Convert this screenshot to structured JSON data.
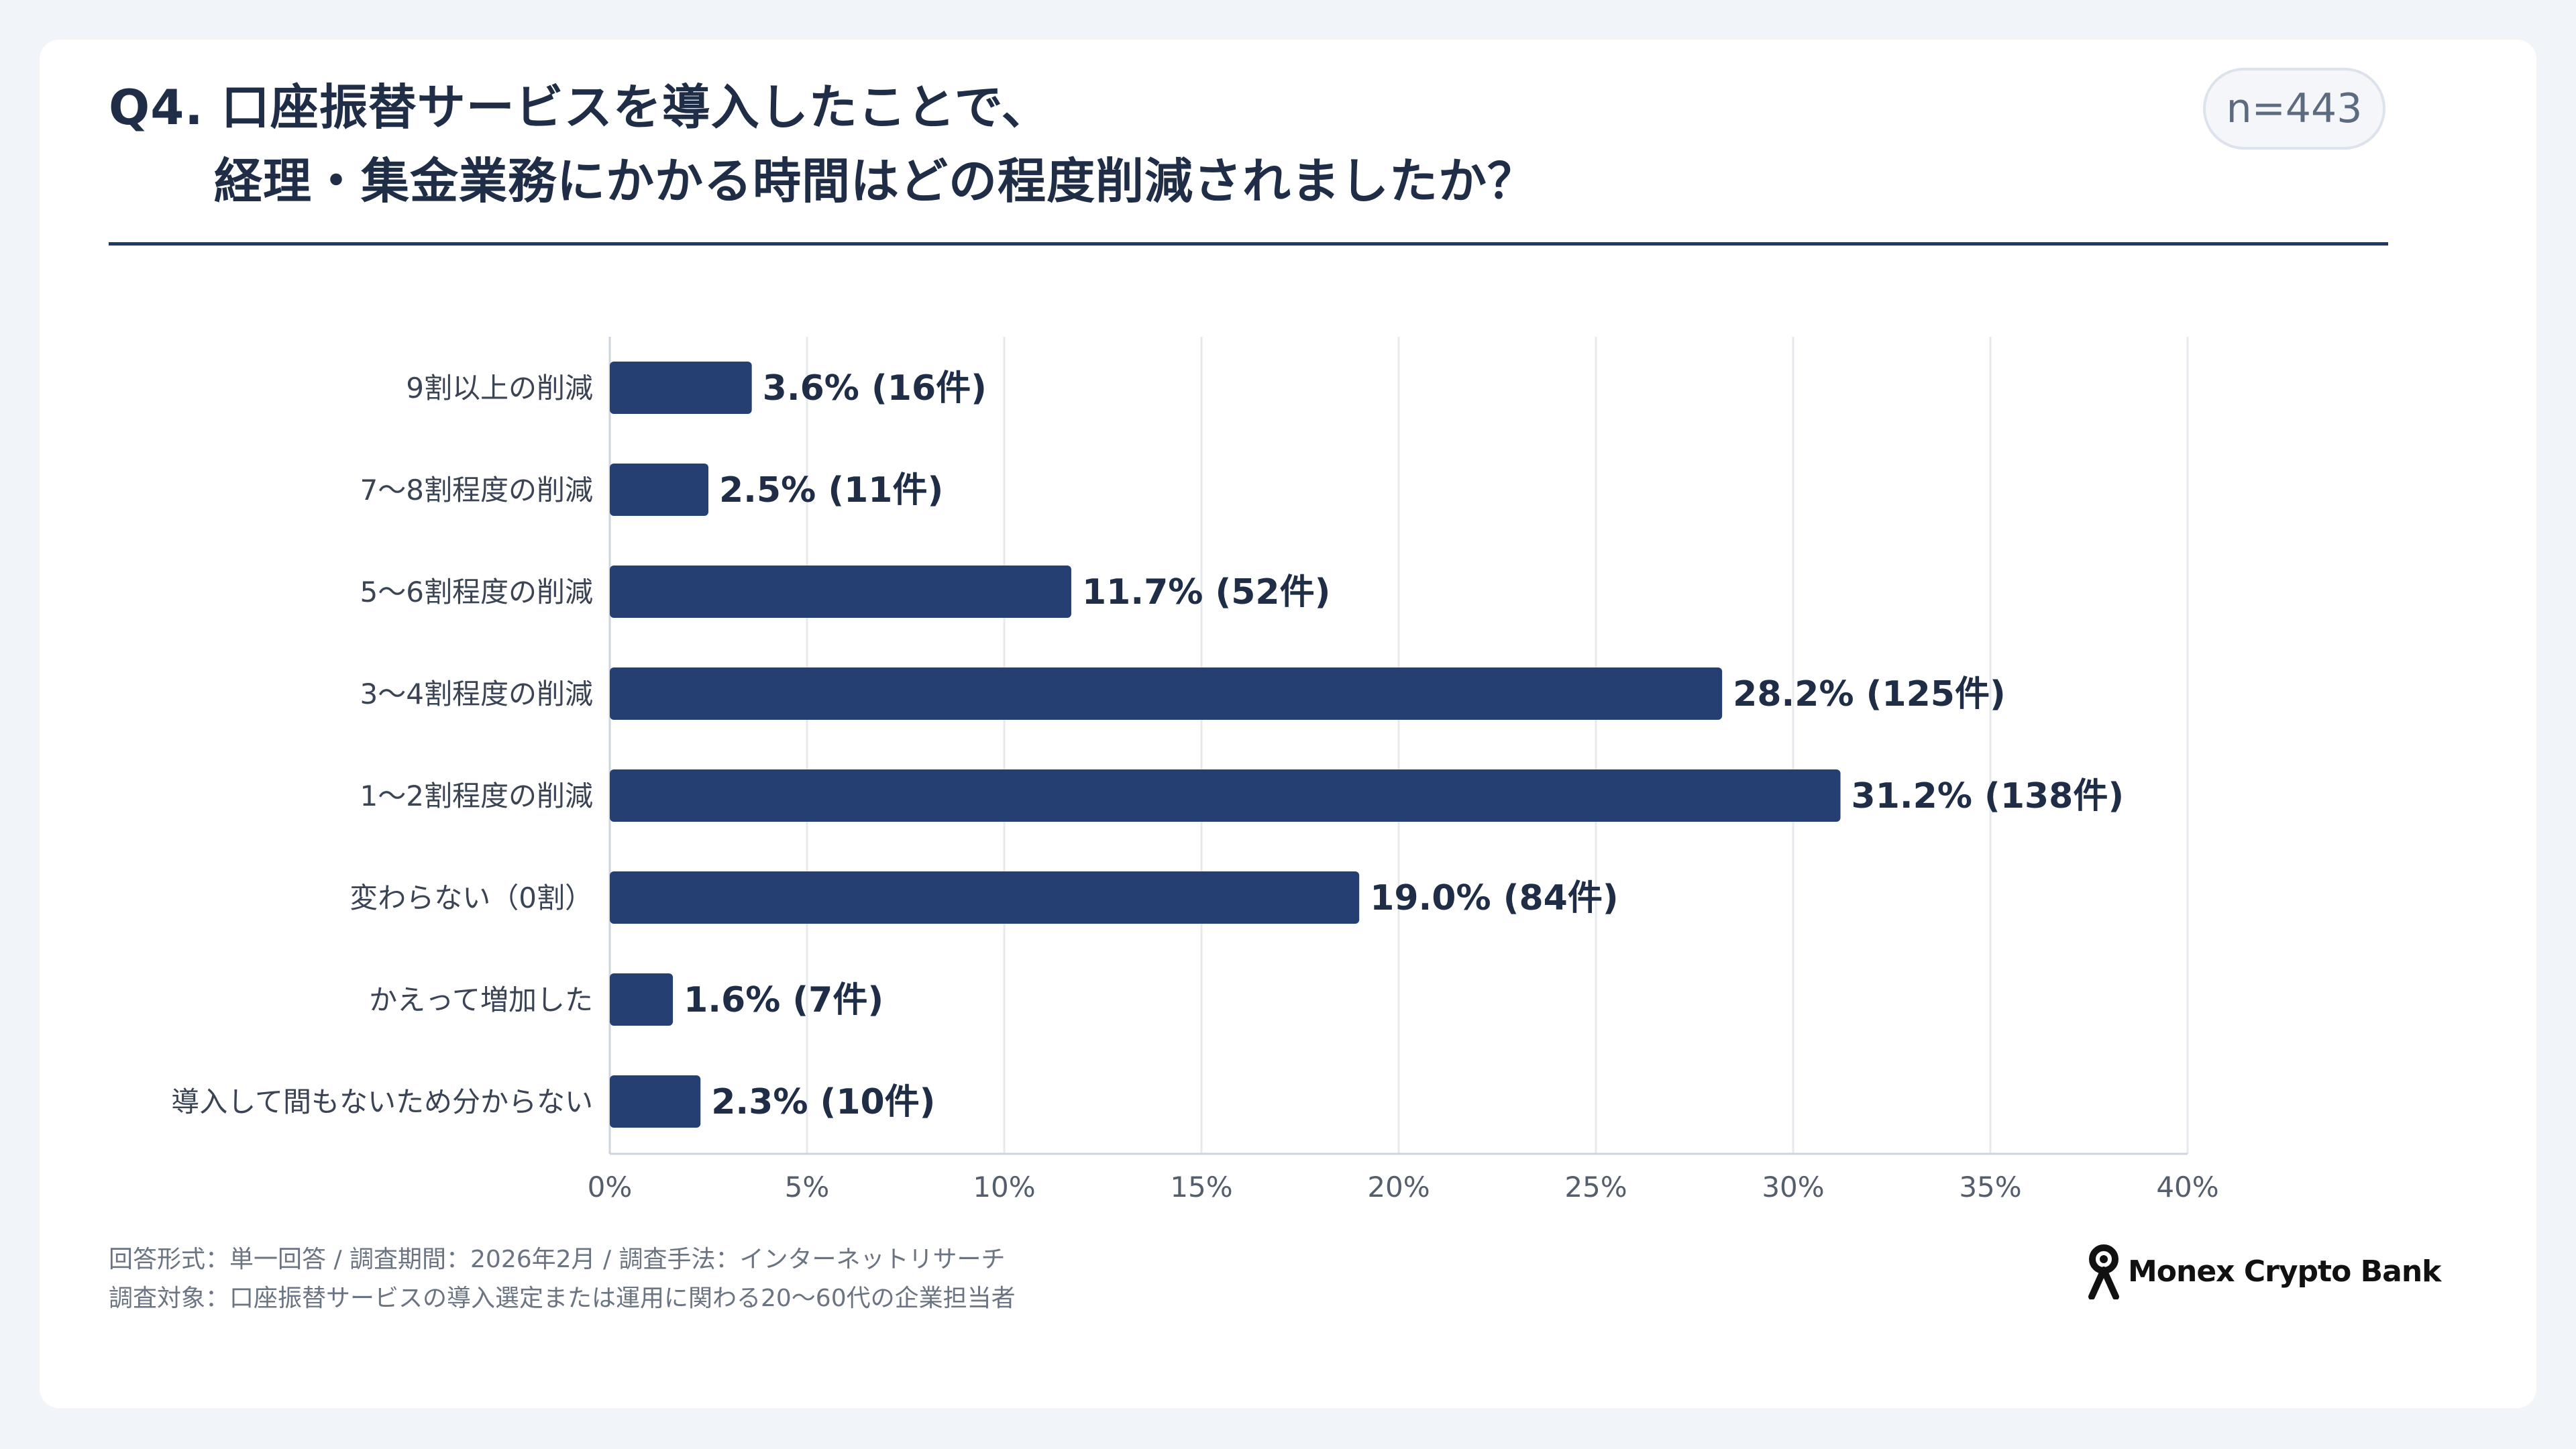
{
  "header": {
    "title_line1": "Q4. 口座振替サービスを導入したことで、",
    "title_line2": "経理・集金業務にかかる時間はどの程度削減されましたか？",
    "sample_size": "n=443"
  },
  "chart_data": {
    "type": "bar",
    "orientation": "horizontal",
    "categories": [
      "9割以上の削減",
      "7〜8割程度の削減",
      "5〜6割程度の削減",
      "3〜4割程度の削減",
      "1〜2割程度の削減",
      "変わらない（0割）",
      "かえって増加した",
      "導入して間もないため分からない"
    ],
    "values": [
      3.6,
      2.5,
      11.7,
      28.2,
      31.2,
      19.0,
      1.6,
      2.3
    ],
    "data_labels": [
      "3.6% (16件)",
      "2.5% (11件)",
      "11.7% (52件)",
      "28.2% (125件)",
      "31.2% (138件)",
      "19.0% (84件)",
      "1.6% (7件)",
      "2.3% (10件)"
    ],
    "xlim": [
      0,
      40
    ],
    "xticks": [
      0,
      5,
      10,
      15,
      20,
      25,
      30,
      35,
      40
    ],
    "xtick_labels": [
      "0%",
      "5%",
      "10%",
      "15%",
      "20%",
      "25%",
      "30%",
      "35%",
      "40%"
    ],
    "grid": true,
    "bar_color": "#263f73"
  },
  "footer": {
    "note1": "回答形式：単一回答 / 調査期間：2026年2月 / 調査手法：インターネットリサーチ",
    "note2": "調査対象：口座振替サービスの導入選定または運用に関わる20〜60代の企業担当者",
    "logo_text": "Monex Crypto Bank",
    "logo_icon": "monex-person-icon"
  },
  "colors": {
    "background": "#f1f4f8",
    "card": "#ffffff",
    "title": "#1f2d46",
    "accent_rule": "#1f3a64",
    "grid": "#e6e9ee",
    "axis_text": "#555e6c"
  }
}
